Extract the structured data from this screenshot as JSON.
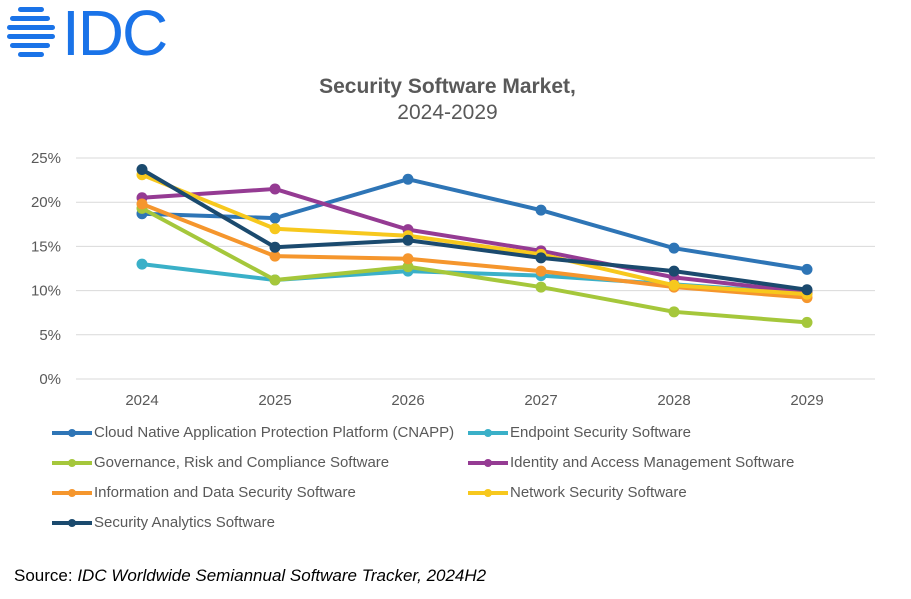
{
  "logo": {
    "text": "IDC",
    "icon": "idc-striped-globe-icon",
    "color": "#1a73e8"
  },
  "chart_data": {
    "type": "line",
    "title": "Security Software Market,",
    "subtitle": "2024-2029",
    "xlabel": "",
    "ylabel": "",
    "x": [
      "2024",
      "2025",
      "2026",
      "2027",
      "2028",
      "2029"
    ],
    "ylim": [
      0,
      25
    ],
    "yticks": [
      0,
      5,
      10,
      15,
      20,
      25
    ],
    "ytick_labels": [
      "0%",
      "5%",
      "10%",
      "15%",
      "20%",
      "25%"
    ],
    "grid": true,
    "legend_position": "bottom",
    "series": [
      {
        "name": "Cloud Native Application Protection Platform (CNAPP)",
        "color": "#2e75b6",
        "values": [
          18.7,
          18.2,
          22.6,
          19.1,
          14.8,
          12.4
        ]
      },
      {
        "name": "Endpoint Security Software",
        "color": "#3ab0c8",
        "values": [
          13.0,
          11.2,
          12.2,
          11.7,
          10.7,
          9.7
        ]
      },
      {
        "name": "Governance, Risk and Compliance Software",
        "color": "#a5c73b",
        "values": [
          19.3,
          11.2,
          12.7,
          10.4,
          7.6,
          6.4
        ]
      },
      {
        "name": "Identity and Access Management Software",
        "color": "#953b93",
        "values": [
          20.5,
          21.5,
          16.9,
          14.5,
          11.5,
          9.8
        ]
      },
      {
        "name": "Information and Data Security Software",
        "color": "#f5962d",
        "values": [
          19.8,
          13.9,
          13.6,
          12.2,
          10.4,
          9.2
        ]
      },
      {
        "name": "Network Security Software",
        "color": "#f7c81d",
        "values": [
          23.1,
          17.0,
          16.2,
          14.1,
          10.6,
          9.6
        ]
      },
      {
        "name": "Security Analytics Software",
        "color": "#1b4a6e",
        "values": [
          23.7,
          14.9,
          15.7,
          13.7,
          12.2,
          10.1
        ]
      }
    ]
  },
  "source": {
    "prefix": "Source: ",
    "text": "IDC Worldwide Semiannual Software Tracker, 2024H2"
  }
}
